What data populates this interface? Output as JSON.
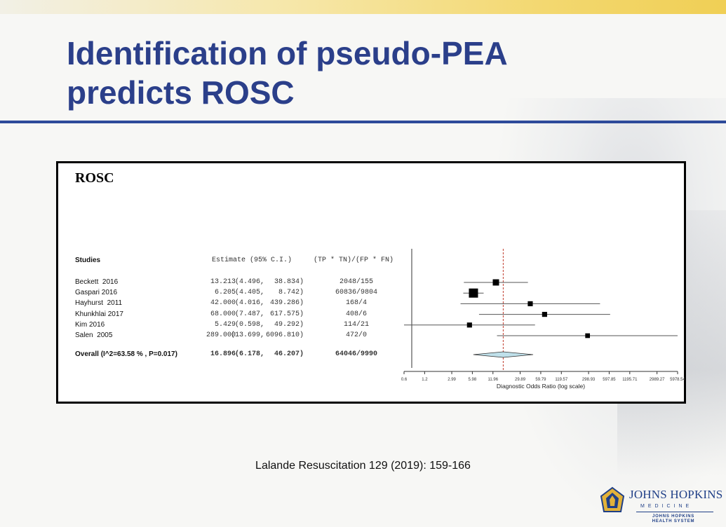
{
  "slide": {
    "title_line1": "Identification of pseudo-PEA",
    "title_line2": "predicts ROSC",
    "citation": "Lalande Resuscitation 129 (2019): 159-166",
    "logo_name": "JOHNS HOPKINS",
    "logo_medicine": "MEDICINE",
    "logo_health1": "JOHNS HOPKINS",
    "logo_health2": "HEALTH SYSTEM",
    "colors": {
      "title": "#2b3f8a",
      "rule": "#2d4a9a",
      "reference_line": "#c0392b",
      "diamond_fill": "#bfe0ea"
    }
  },
  "chart_data": {
    "type": "forest",
    "title": "ROSC",
    "headers": {
      "studies": "Studies",
      "estimate": "Estimate (95% C.I.)",
      "counts": "(TP * TN)/(FP * FN)"
    },
    "xlabel": "Diagnostic Odds Ratio (log scale)",
    "x_scale": "log",
    "x_ticks": [
      "0.6",
      "1.2",
      "2.99",
      "5.98",
      "11.96",
      "29.89",
      "59.79",
      "119.57",
      "298.93",
      "597.85",
      "1195.71",
      "2989.27",
      "5978.54"
    ],
    "reference_value": 16.896,
    "studies": [
      {
        "name": "Beckett  2016",
        "estimate": "13.213",
        "ci_low": "(4.496,",
        "ci_high": "38.834)",
        "counts": "2048/155",
        "est": 13.213,
        "lo": 4.496,
        "hi": 38.834,
        "weight": 0.55
      },
      {
        "name": "Gaspari 2016",
        "estimate": "6.205",
        "ci_low": "(4.405,",
        "ci_high": "8.742)",
        "counts": "60836/9804",
        "est": 6.205,
        "lo": 4.405,
        "hi": 8.742,
        "weight": 1.0
      },
      {
        "name": "Hayhurst  2011",
        "estimate": "42.000",
        "ci_low": "(4.016,",
        "ci_high": "439.286)",
        "counts": "168/4",
        "est": 42.0,
        "lo": 4.016,
        "hi": 439.286,
        "weight": 0.35
      },
      {
        "name": "Khunkhlai 2017",
        "estimate": "68.000",
        "ci_low": "(7.487,",
        "ci_high": "617.575)",
        "counts": "408/6",
        "est": 68.0,
        "lo": 7.487,
        "hi": 617.575,
        "weight": 0.35
      },
      {
        "name": "Kim 2016",
        "estimate": "5.429",
        "ci_low": "(0.598,",
        "ci_high": "49.292)",
        "counts": "114/21",
        "est": 5.429,
        "lo": 0.598,
        "hi": 49.292,
        "weight": 0.35
      },
      {
        "name": "Salen  2005",
        "estimate": "289.000",
        "ci_low": "(13.699,",
        "ci_high": "6096.810)",
        "counts": "472/0",
        "est": 289.0,
        "lo": 13.699,
        "hi": 6096.81,
        "weight": 0.3
      }
    ],
    "overall": {
      "name": "Overall (I^2=63.58 % , P=0.017)",
      "estimate": "16.896",
      "ci_low": "(6.178,",
      "ci_high": "46.207)",
      "counts": "64046/9990",
      "est": 16.896,
      "lo": 6.178,
      "hi": 46.207
    }
  }
}
